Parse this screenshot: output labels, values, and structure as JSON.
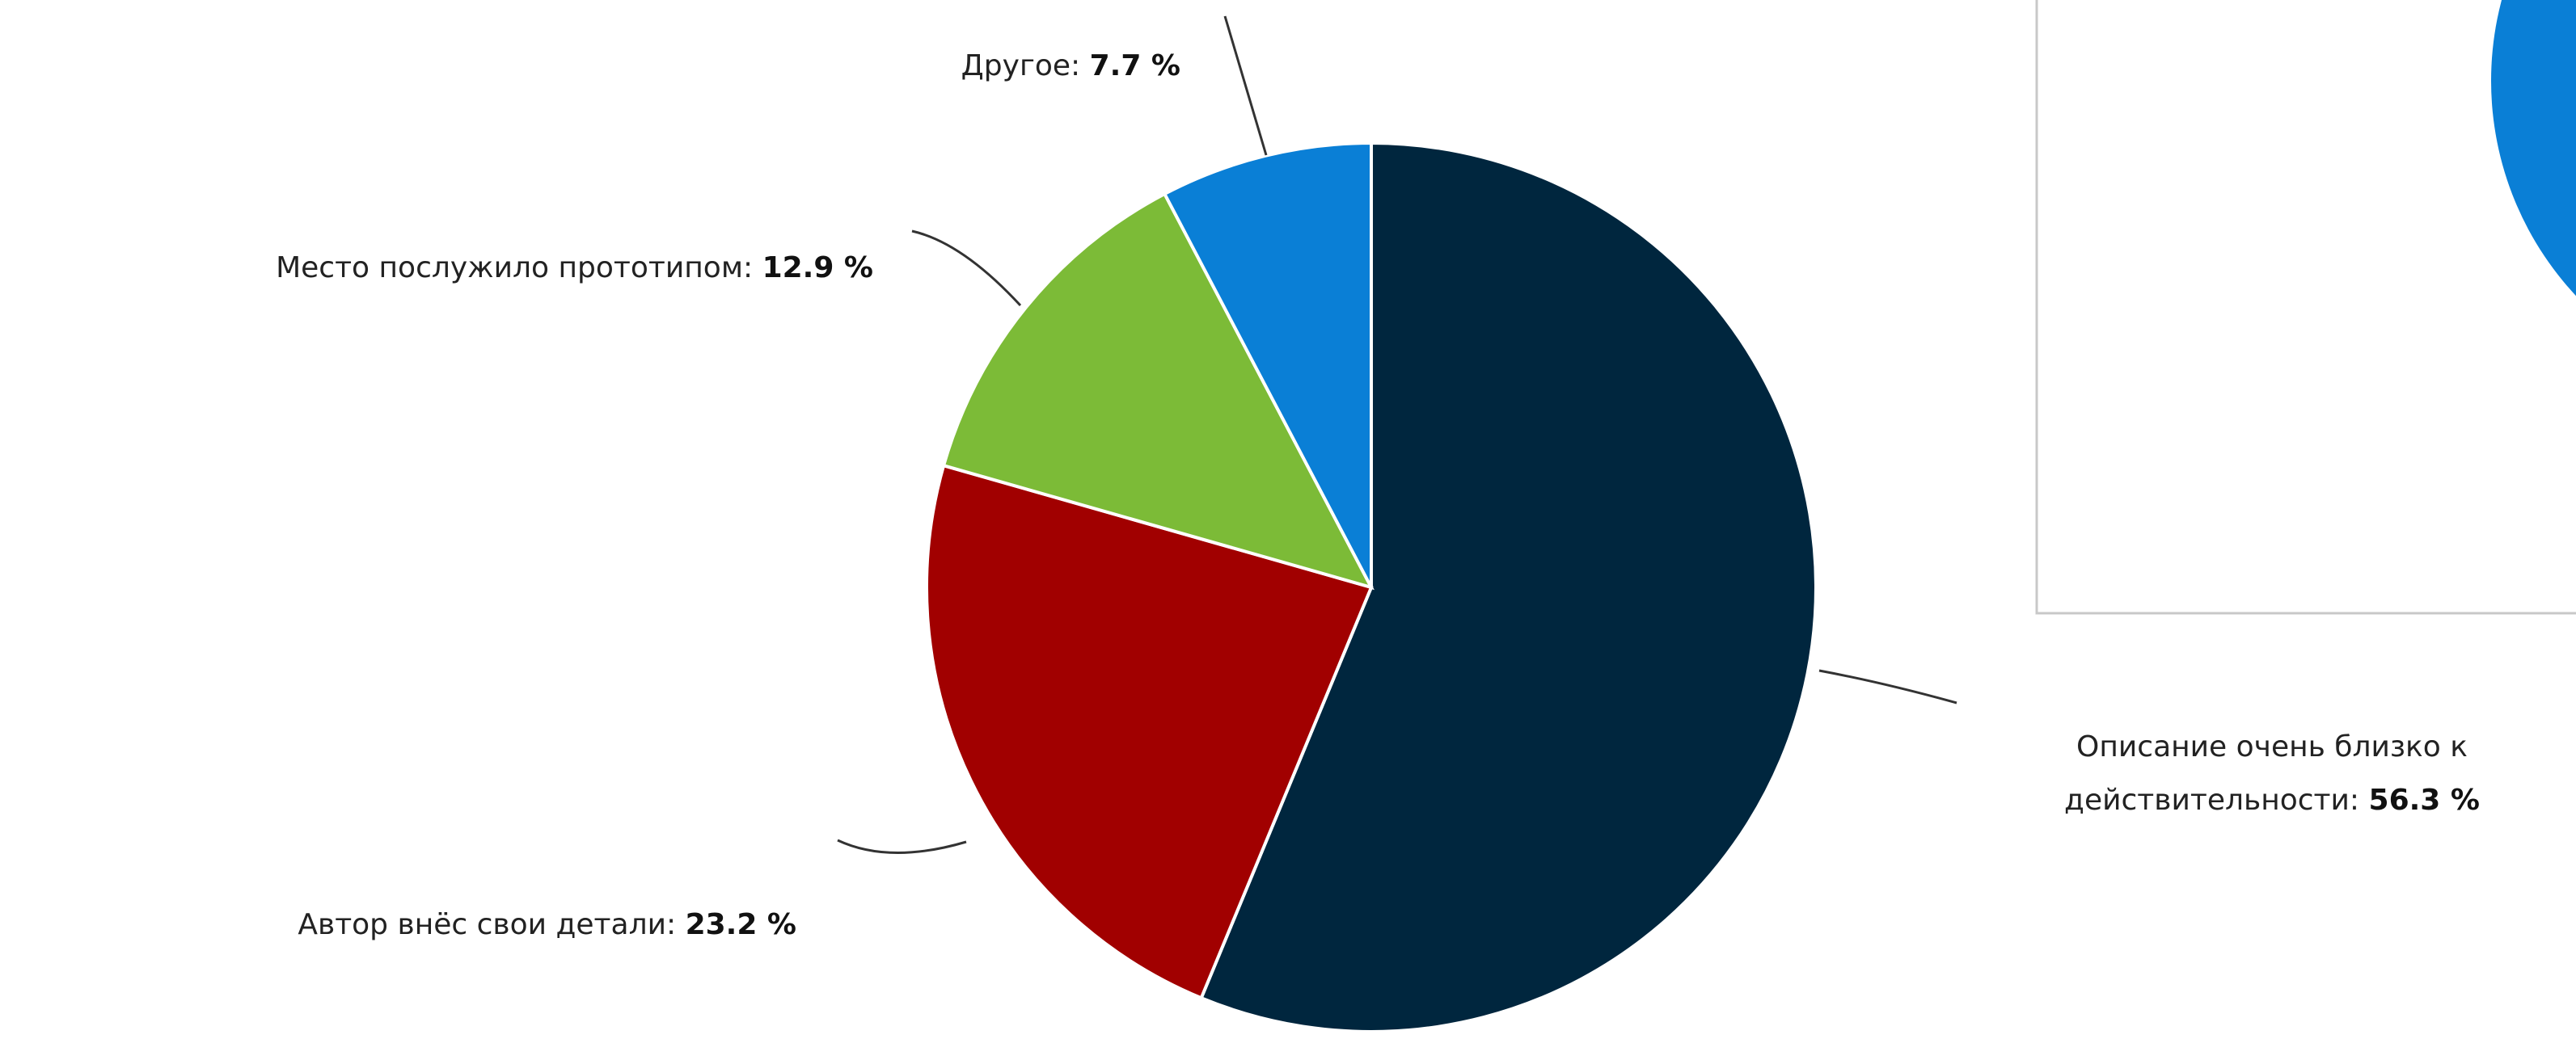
{
  "chart_data": {
    "type": "pie",
    "categories": [
      "Описание очень близко к действительности:",
      "Автор внёс свои детали:",
      "Место послужило прототипом:",
      "Другое:"
    ],
    "values": [
      56.3,
      23.2,
      12.9,
      7.7
    ],
    "value_labels": [
      "56.3 %",
      "23.2 %",
      "12.9 %",
      "7.7 %"
    ],
    "colors": [
      "#00263e",
      "#a10000",
      "#7cbb37",
      "#0a7fd6"
    ]
  }
}
